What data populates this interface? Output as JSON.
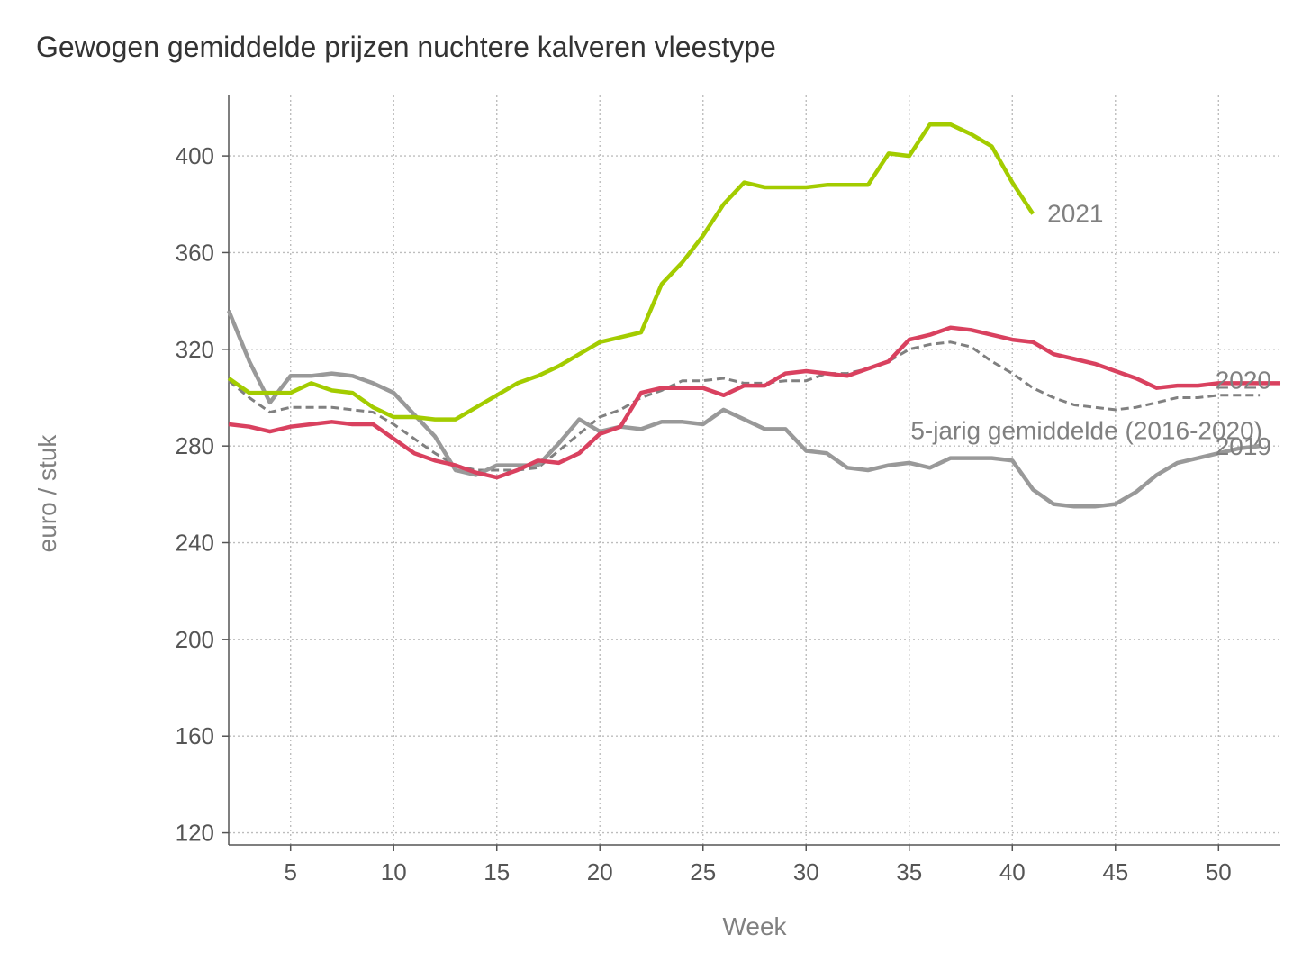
{
  "chart_data": {
    "type": "line",
    "title": "Gewogen gemiddelde prijzen nuchtere kalveren vleestype",
    "xlabel": "Week",
    "ylabel": "euro / stuk",
    "xlim": [
      2,
      53
    ],
    "ylim": [
      115,
      425
    ],
    "xticks": [
      5,
      10,
      15,
      20,
      25,
      30,
      35,
      40,
      45,
      50
    ],
    "yticks": [
      120,
      160,
      200,
      240,
      280,
      320,
      360,
      400
    ],
    "grid": true,
    "series": [
      {
        "name": "5-jarig gemiddelde (2016-2020)",
        "color": "#808080",
        "dash": true,
        "x": [
          2,
          3,
          4,
          5,
          6,
          7,
          8,
          9,
          10,
          11,
          12,
          13,
          14,
          15,
          16,
          17,
          18,
          19,
          20,
          21,
          22,
          23,
          24,
          25,
          26,
          27,
          28,
          29,
          30,
          31,
          32,
          33,
          34,
          35,
          36,
          37,
          38,
          39,
          40,
          41,
          42,
          43,
          44,
          45,
          46,
          47,
          48,
          49,
          50,
          51,
          52
        ],
        "y": [
          307,
          300,
          294,
          296,
          296,
          296,
          295,
          294,
          289,
          283,
          277,
          272,
          270,
          270,
          270,
          271,
          278,
          285,
          292,
          295,
          300,
          303,
          307,
          307,
          308,
          306,
          306,
          307,
          307,
          310,
          310,
          312,
          315,
          320,
          322,
          323,
          321,
          315,
          310,
          304,
          300,
          297,
          296,
          295,
          296,
          298,
          300,
          300,
          301,
          301,
          301
        ]
      },
      {
        "name": "2019",
        "color": "#999999",
        "dash": false,
        "x": [
          2,
          3,
          4,
          5,
          6,
          7,
          8,
          9,
          10,
          11,
          12,
          13,
          14,
          15,
          16,
          17,
          18,
          19,
          20,
          21,
          22,
          23,
          24,
          25,
          26,
          27,
          28,
          29,
          30,
          31,
          32,
          33,
          34,
          35,
          36,
          37,
          38,
          39,
          40,
          41,
          42,
          43,
          44,
          45,
          46,
          47,
          48,
          49,
          50,
          51,
          52
        ],
        "y": [
          336,
          315,
          298,
          309,
          309,
          310,
          309,
          306,
          302,
          293,
          284,
          270,
          268,
          272,
          272,
          272,
          281,
          291,
          286,
          288,
          287,
          290,
          290,
          289,
          295,
          291,
          287,
          287,
          278,
          277,
          271,
          270,
          272,
          273,
          271,
          275,
          275,
          275,
          274,
          262,
          256,
          255,
          255,
          256,
          261,
          268,
          273,
          275,
          277,
          279,
          280
        ]
      },
      {
        "name": "2020",
        "color": "#d9415f",
        "dash": false,
        "x": [
          2,
          3,
          4,
          5,
          6,
          7,
          8,
          9,
          10,
          11,
          12,
          13,
          14,
          15,
          16,
          17,
          18,
          19,
          20,
          21,
          22,
          23,
          24,
          25,
          26,
          27,
          28,
          29,
          30,
          31,
          32,
          33,
          34,
          35,
          36,
          37,
          38,
          39,
          40,
          41,
          42,
          43,
          44,
          45,
          46,
          47,
          48,
          49,
          50,
          51,
          52,
          53
        ],
        "y": [
          289,
          288,
          286,
          288,
          289,
          290,
          289,
          289,
          283,
          277,
          274,
          272,
          269,
          267,
          270,
          274,
          273,
          277,
          285,
          288,
          302,
          304,
          304,
          304,
          301,
          305,
          305,
          310,
          311,
          310,
          309,
          312,
          315,
          324,
          326,
          329,
          328,
          326,
          324,
          323,
          318,
          316,
          314,
          311,
          308,
          304,
          305,
          305,
          306,
          306,
          306,
          306
        ]
      },
      {
        "name": "2021",
        "color": "#a3cc00",
        "dash": false,
        "x": [
          2,
          3,
          4,
          5,
          6,
          7,
          8,
          9,
          10,
          11,
          12,
          13,
          14,
          15,
          16,
          17,
          18,
          19,
          20,
          21,
          22,
          23,
          24,
          25,
          26,
          27,
          28,
          29,
          30,
          31,
          32,
          33,
          34,
          35,
          36,
          37,
          38,
          39,
          40,
          41
        ],
        "y": [
          308,
          302,
          302,
          302,
          306,
          303,
          302,
          296,
          292,
          292,
          291,
          291,
          296,
          301,
          306,
          309,
          313,
          318,
          323,
          325,
          327,
          347,
          356,
          367,
          380,
          389,
          387,
          387,
          387,
          388,
          388,
          388,
          401,
          400,
          413,
          413,
          409,
          404,
          389,
          376
        ]
      }
    ]
  }
}
